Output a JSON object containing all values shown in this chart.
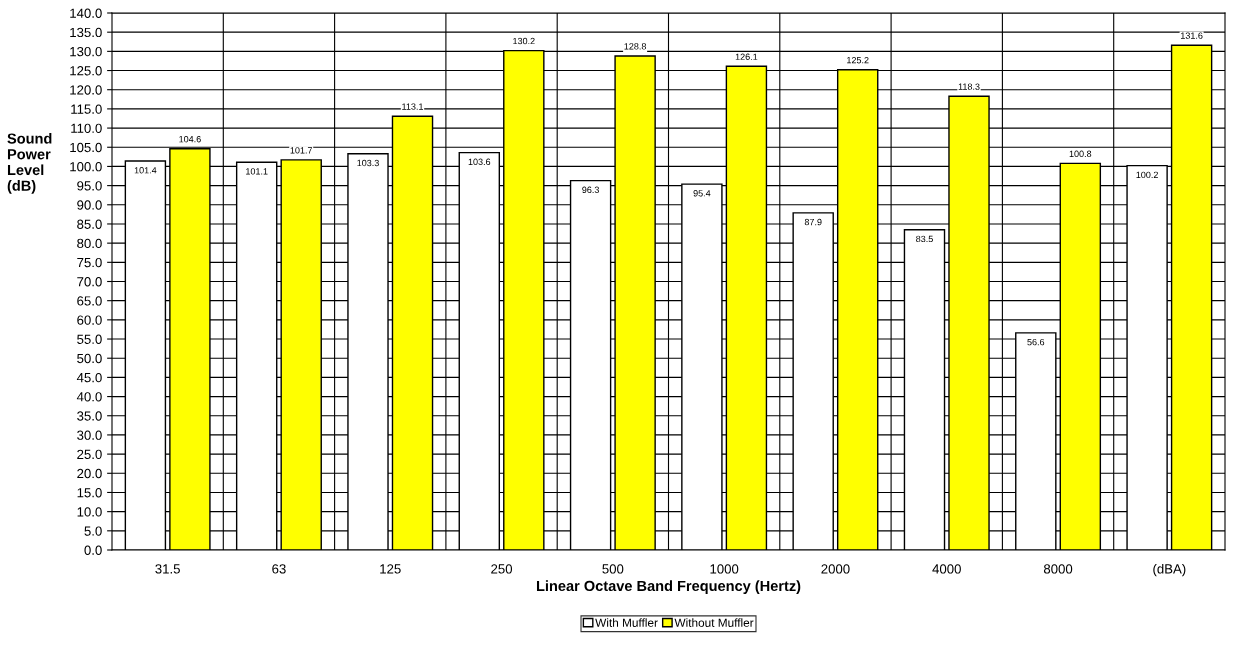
{
  "chart_data": {
    "type": "bar",
    "xlabel": "Linear Octave Band Frequency (Hertz)",
    "ylabel": "Sound\nPower\nLevel\n(dB)",
    "categories": [
      "31.5",
      "63",
      "125",
      "250",
      "500",
      "1000",
      "2000",
      "4000",
      "8000",
      "(dBA)"
    ],
    "series": [
      {
        "name": "With Muffler",
        "color": "#ffffff",
        "values": [
          101.4,
          101.1,
          103.3,
          103.6,
          96.3,
          95.4,
          87.9,
          83.5,
          56.6,
          100.2
        ]
      },
      {
        "name": "Without Muffler",
        "color": "#ffff00",
        "values": [
          104.6,
          101.7,
          113.1,
          130.2,
          128.8,
          126.1,
          125.2,
          118.3,
          100.8,
          131.6
        ]
      }
    ],
    "ylim": [
      0,
      140
    ],
    "yticks": [
      {
        "value": 0,
        "label": "0.0"
      },
      {
        "value": 5,
        "label": "5.0"
      },
      {
        "value": 10,
        "label": "10.0"
      },
      {
        "value": 15,
        "label": "15.0"
      },
      {
        "value": 20,
        "label": "20.0"
      },
      {
        "value": 25,
        "label": "25.0"
      },
      {
        "value": 30,
        "label": "30.0"
      },
      {
        "value": 35,
        "label": "35.0"
      },
      {
        "value": 40,
        "label": "40.0"
      },
      {
        "value": 45,
        "label": "45.0"
      },
      {
        "value": 50,
        "label": "50.0"
      },
      {
        "value": 55,
        "label": "55.0"
      },
      {
        "value": 60,
        "label": "60.0"
      },
      {
        "value": 65,
        "label": "65.0"
      },
      {
        "value": 70,
        "label": "70.0"
      },
      {
        "value": 75,
        "label": "75.0"
      },
      {
        "value": 80,
        "label": "80.0"
      },
      {
        "value": 85,
        "label": "85.0"
      },
      {
        "value": 90,
        "label": "90.0"
      },
      {
        "value": 95,
        "label": "95.0"
      },
      {
        "value": 100,
        "label": "100.0"
      },
      {
        "value": 105,
        "label": "105.0"
      },
      {
        "value": 110,
        "label": "110.0"
      },
      {
        "value": 115,
        "label": "115.0"
      },
      {
        "value": 120,
        "label": "120.0"
      },
      {
        "value": 125,
        "label": "125.0"
      },
      {
        "value": 130,
        "label": "130.0"
      },
      {
        "value": 135,
        "label": "135.0"
      },
      {
        "value": 140,
        "label": "140.0"
      }
    ],
    "grid": true,
    "legend": "bottom",
    "data_labels": true
  }
}
